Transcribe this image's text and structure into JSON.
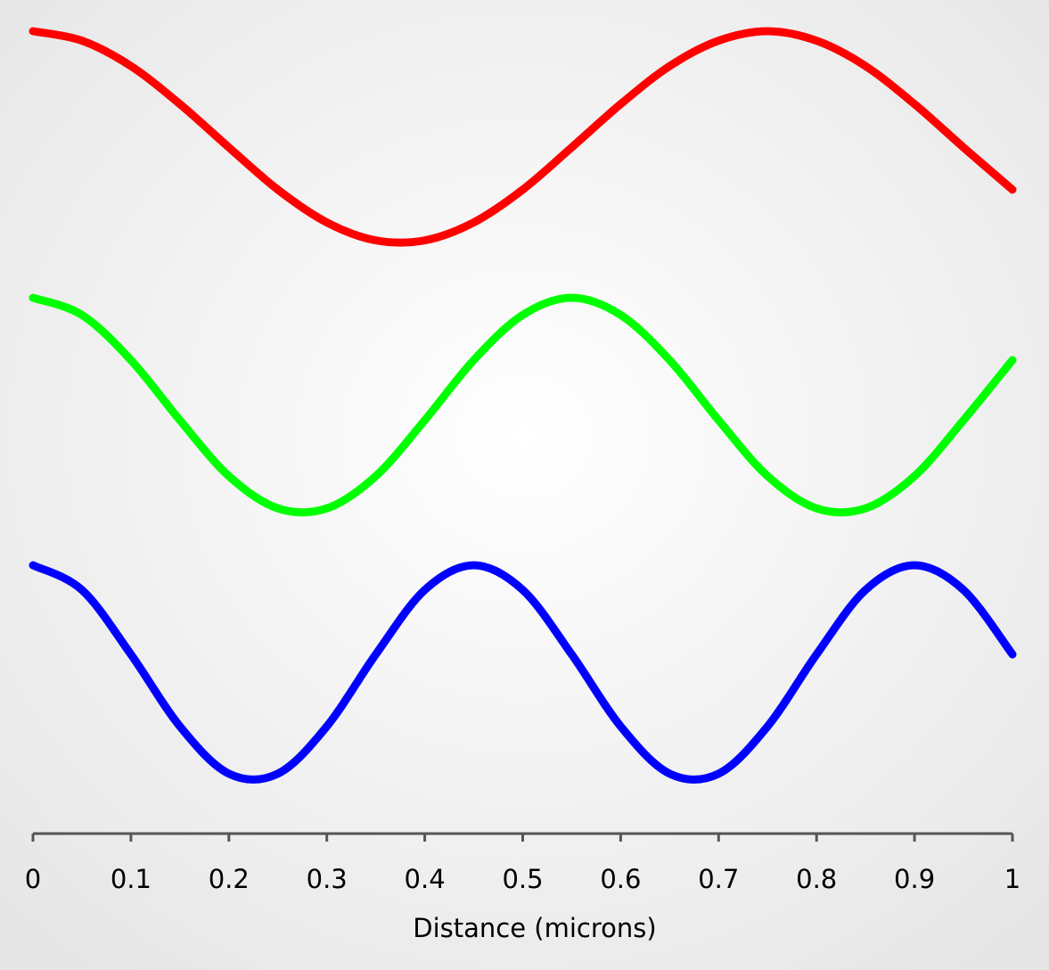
{
  "chart_data": [
    {
      "type": "line",
      "color": "#ff0000",
      "ylim": [
        -1,
        1
      ],
      "x": [
        0,
        0.05,
        0.1,
        0.15,
        0.2,
        0.25,
        0.3,
        0.35,
        0.4,
        0.45,
        0.5,
        0.55,
        0.6,
        0.65,
        0.7,
        0.75,
        0.8,
        0.85,
        0.9,
        0.95,
        1
      ],
      "values": [
        1,
        0.91,
        0.67,
        0.31,
        -0.1,
        -0.5,
        -0.81,
        -0.98,
        -0.98,
        -0.81,
        -0.5,
        -0.1,
        0.31,
        0.67,
        0.91,
        1,
        0.91,
        0.67,
        0.31,
        -0.1,
        -0.5
      ]
    },
    {
      "type": "line",
      "color": "#00ff00",
      "ylim": [
        -1,
        1
      ],
      "x": [
        0,
        0.05,
        0.1,
        0.15,
        0.2,
        0.25,
        0.3,
        0.35,
        0.4,
        0.45,
        0.5,
        0.55,
        0.6,
        0.65,
        0.7,
        0.75,
        0.8,
        0.85,
        0.9,
        0.95,
        1
      ],
      "values": [
        1,
        0.84,
        0.42,
        -0.14,
        -0.66,
        -0.96,
        -0.96,
        -0.66,
        -0.14,
        0.42,
        0.84,
        1,
        0.84,
        0.42,
        -0.14,
        -0.66,
        -0.96,
        -0.96,
        -0.66,
        -0.14,
        0.42
      ]
    },
    {
      "type": "line",
      "color": "#0000ff",
      "ylim": [
        -1,
        1
      ],
      "x": [
        0,
        0.05,
        0.1,
        0.15,
        0.2,
        0.25,
        0.3,
        0.35,
        0.4,
        0.45,
        0.5,
        0.55,
        0.6,
        0.65,
        0.7,
        0.75,
        0.8,
        0.85,
        0.9,
        0.95,
        1
      ],
      "values": [
        1,
        0.77,
        0.17,
        -0.5,
        -0.94,
        -0.94,
        -0.5,
        0.17,
        0.77,
        1,
        0.77,
        0.17,
        -0.5,
        -0.94,
        -0.94,
        -0.5,
        0.17,
        0.77,
        1,
        0.77,
        0.17
      ],
      "xlim": [
        0,
        1
      ],
      "xticks": [
        0,
        0.1,
        0.2,
        0.3,
        0.4,
        0.5,
        0.6,
        0.7,
        0.8,
        0.9,
        1
      ],
      "xlabel": "Distance (microns)"
    }
  ]
}
